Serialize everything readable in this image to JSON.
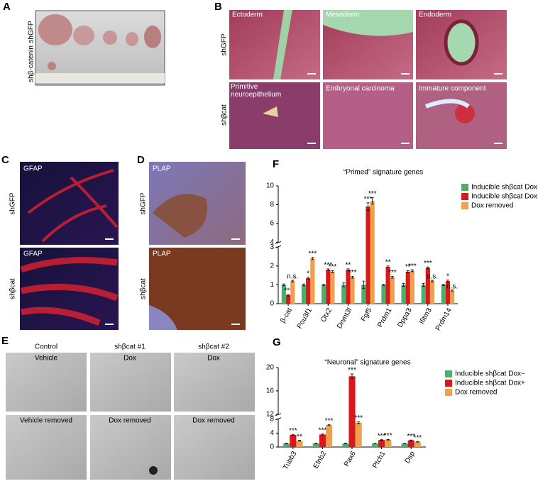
{
  "panels": {
    "A": {
      "label": "A",
      "rows": [
        "shGFP",
        "shβ-catenin"
      ]
    },
    "B": {
      "label": "B",
      "rows": [
        "shGFP",
        "shβcat"
      ],
      "tiles": [
        "Ectoderm",
        "Mesoderm",
        "Endoderm",
        "Primitive neuroepithelium",
        "Embryonal carcinoma",
        "Immature component"
      ]
    },
    "C": {
      "label": "C",
      "rows": [
        "shGFP",
        "shβcat"
      ],
      "tiles": [
        "GFAP",
        "GFAP"
      ]
    },
    "D": {
      "label": "D",
      "rows": [
        "shGFP",
        "shβcat"
      ],
      "tiles": [
        "PLAP",
        "PLAP"
      ]
    },
    "E": {
      "label": "E",
      "columns": [
        "Control",
        "shβcat #1",
        "shβcat #2"
      ],
      "tiles": [
        "Vehicle",
        "Dox",
        "Dox",
        "Vehicle removed",
        "Dox removed",
        "Dox removed"
      ]
    }
  },
  "chart_data": [
    {
      "type": "bar",
      "label": "F",
      "title": "“Primed” signature genes",
      "categories": [
        "β-cat",
        "Pou3f1",
        "Otx2",
        "Dnmt3l",
        "Fgf5",
        "Prdm1",
        "Dppa3",
        "Ifitm3",
        "Prdm14"
      ],
      "ylim": [
        0,
        10
      ],
      "ybreak": [
        3,
        4
      ],
      "yticks": [
        0,
        1,
        2,
        3,
        4,
        6,
        8,
        10
      ],
      "series": [
        {
          "name": "Inducible shβcat Dox−",
          "color": "#4caf6a",
          "values": [
            1,
            1,
            1,
            1,
            1,
            1,
            1,
            1,
            1
          ],
          "errors": [
            0.05,
            0.05,
            0.03,
            0.1,
            0.2,
            0.03,
            0.08,
            0.08,
            0.04
          ],
          "significance": [
            null,
            null,
            null,
            null,
            null,
            null,
            null,
            null,
            null
          ]
        },
        {
          "name": "Inducible shβcat Dox+",
          "color": "#d7191c",
          "values": [
            0.45,
            1.35,
            1.8,
            1.8,
            7.8,
            1.95,
            1.7,
            1.9,
            1.2
          ],
          "errors": [
            0.04,
            0.05,
            0.05,
            0.05,
            0.4,
            0.05,
            0.05,
            0.05,
            0.05
          ],
          "significance": [
            "***",
            "*",
            "***",
            "**",
            "***",
            "**",
            "**",
            "***",
            "*"
          ]
        },
        {
          "name": "Dox removed",
          "color": "#f0a04b",
          "values": [
            1.2,
            2.4,
            1.7,
            1.4,
            8.4,
            1.4,
            1.75,
            1.2,
            0.7
          ],
          "errors": [
            0.04,
            0.06,
            0.05,
            0.05,
            0.35,
            0.05,
            0.05,
            0.04,
            0.03
          ],
          "significance": [
            "n.s.",
            "***",
            "***",
            "***",
            "***",
            "***",
            "***",
            "n.s.",
            "n.s."
          ]
        }
      ]
    },
    {
      "type": "bar",
      "label": "G",
      "title": "“Neuronal” signature genes",
      "categories": [
        "Tubb3",
        "Efnb2",
        "Pax6",
        "Ptch1",
        "Dsp"
      ],
      "ylim": [
        0,
        20
      ],
      "ybreak": [
        8,
        12
      ],
      "yticks": [
        0,
        4,
        8,
        12,
        16,
        20
      ],
      "series": [
        {
          "name": "Inducible shβcat Dox−",
          "color": "#4caf6a",
          "values": [
            1,
            1,
            1,
            1,
            1
          ],
          "errors": [
            0.1,
            0.1,
            0.1,
            0.05,
            0.05
          ],
          "significance": [
            null,
            null,
            null,
            null,
            null
          ]
        },
        {
          "name": "Inducible shβcat Dox+",
          "color": "#d7191c",
          "values": [
            3.5,
            3.6,
            18.5,
            2,
            1.9
          ],
          "errors": [
            0.15,
            0.15,
            0.4,
            0.1,
            0.1
          ],
          "significance": [
            "***",
            "***",
            "***",
            "***",
            "***"
          ]
        },
        {
          "name": "Dox removed",
          "color": "#f0a04b",
          "values": [
            1.8,
            6.3,
            7,
            2.1,
            1.5
          ],
          "errors": [
            0.1,
            0.15,
            0.25,
            0.1,
            0.1
          ],
          "significance": [
            "**",
            "***",
            "***",
            "***",
            "***"
          ]
        }
      ]
    }
  ]
}
